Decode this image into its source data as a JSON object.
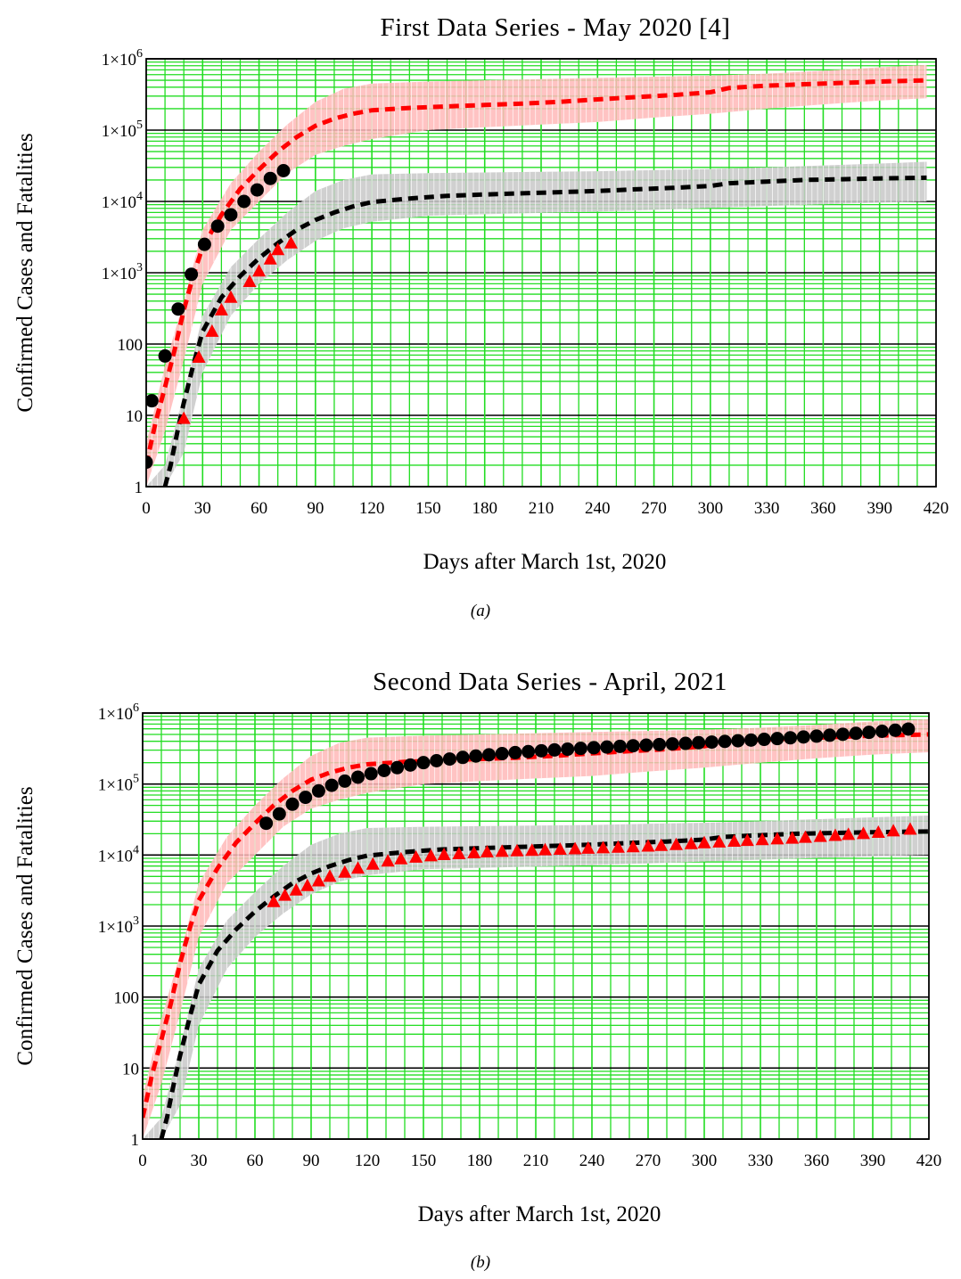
{
  "chart_data": [
    {
      "type": "scatter",
      "panel_label": "(a)",
      "title": "First Data Series - May 2020 [4]",
      "xlabel": "Days after March 1st, 2020",
      "ylabel": "Confirmed Cases and Fatalities",
      "xlim": [
        0,
        420
      ],
      "ylim": [
        1,
        1000000
      ],
      "yscale": "log",
      "grid": true,
      "x_ticks": [
        "0",
        "30",
        "60",
        "90",
        "120",
        "150",
        "180",
        "210",
        "240",
        "270",
        "300",
        "330",
        "360",
        "390",
        "420"
      ],
      "y_ticks": [
        "1",
        "10",
        "100",
        "1×10^3",
        "1×10^4",
        "1×10^5",
        "1×10^6"
      ],
      "series": [
        {
          "kind": "band",
          "color": "#ffb8b8",
          "x": [
            0,
            10,
            20,
            30,
            45,
            60,
            75,
            90,
            105,
            120,
            150,
            180,
            210,
            240,
            270,
            300,
            330,
            360,
            390,
            415
          ],
          "lower": [
            1,
            6,
            60,
            700,
            4000,
            10000,
            25000,
            45000,
            60000,
            75000,
            100000,
            110000,
            120000,
            130000,
            150000,
            170000,
            200000,
            230000,
            260000,
            280000
          ],
          "upper": [
            4,
            50,
            400,
            4000,
            18000,
            50000,
            120000,
            250000,
            380000,
            450000,
            480000,
            500000,
            520000,
            540000,
            560000,
            580000,
            620000,
            680000,
            760000,
            820000
          ]
        },
        {
          "kind": "band",
          "color": "#c8c8c8",
          "x": [
            0,
            10,
            20,
            30,
            45,
            60,
            75,
            90,
            105,
            120,
            150,
            180,
            210,
            240,
            270,
            300,
            330,
            360,
            390,
            415
          ],
          "lower": [
            1,
            1,
            3,
            40,
            250,
            700,
            1500,
            2800,
            4200,
            5200,
            6300,
            6600,
            6900,
            7200,
            7600,
            8100,
            8600,
            9100,
            9600,
            10000
          ],
          "upper": [
            1,
            2,
            20,
            250,
            1200,
            3000,
            7000,
            14000,
            20000,
            24000,
            25000,
            25500,
            26000,
            26500,
            27500,
            28500,
            30000,
            32000,
            34000,
            36000
          ]
        },
        {
          "kind": "line",
          "style": "dashed",
          "color": "#ff0000",
          "x": [
            0,
            5,
            10,
            15,
            20,
            25,
            30,
            40,
            50,
            60,
            70,
            80,
            90,
            100,
            110,
            120,
            140,
            160,
            180,
            200,
            220,
            240,
            260,
            280,
            300,
            310,
            330,
            350,
            370,
            390,
            415
          ],
          "y": [
            2,
            8,
            25,
            80,
            300,
            900,
            2300,
            6500,
            15000,
            28000,
            50000,
            80000,
            115000,
            145000,
            170000,
            190000,
            205000,
            215000,
            225000,
            235000,
            250000,
            270000,
            290000,
            310000,
            340000,
            390000,
            420000,
            440000,
            460000,
            480000,
            500000
          ]
        },
        {
          "kind": "line",
          "style": "dashed",
          "color": "#000000",
          "x": [
            10,
            13,
            16,
            20,
            25,
            30,
            40,
            50,
            60,
            70,
            80,
            90,
            100,
            110,
            120,
            140,
            160,
            180,
            200,
            220,
            240,
            260,
            280,
            300,
            310,
            330,
            350,
            370,
            390,
            415
          ],
          "y": [
            1,
            2,
            5,
            15,
            50,
            150,
            450,
            900,
            1600,
            2600,
            4000,
            5500,
            7000,
            8500,
            9800,
            11000,
            12000,
            12500,
            13000,
            13500,
            14000,
            14800,
            15500,
            16500,
            18000,
            19000,
            20000,
            20500,
            21000,
            21500
          ]
        },
        {
          "kind": "points",
          "marker": "circle",
          "color": "#000000",
          "x": [
            0,
            3,
            10,
            17,
            24,
            31,
            38,
            45,
            52,
            59,
            66,
            73
          ],
          "y": [
            2.2,
            16,
            68,
            310,
            950,
            2500,
            4500,
            6500,
            10000,
            14500,
            21000,
            27000
          ]
        },
        {
          "kind": "points",
          "marker": "triangle",
          "color": "#ff0000",
          "x": [
            20,
            28,
            35,
            40,
            45,
            55,
            60,
            66,
            70,
            77
          ],
          "y": [
            9,
            65,
            150,
            300,
            450,
            750,
            1050,
            1550,
            2100,
            2600
          ]
        }
      ]
    },
    {
      "type": "scatter",
      "panel_label": "(b)",
      "title": "Second Data Series - April, 2021",
      "xlabel": "Days after March 1st, 2020",
      "ylabel": "Confirmed Cases and Fatalities",
      "xlim": [
        0,
        420
      ],
      "ylim": [
        1,
        1000000
      ],
      "yscale": "log",
      "grid": true,
      "x_ticks": [
        "0",
        "30",
        "60",
        "90",
        "120",
        "150",
        "180",
        "210",
        "240",
        "270",
        "300",
        "330",
        "360",
        "390",
        "420"
      ],
      "y_ticks": [
        "1",
        "10",
        "100",
        "1×10^3",
        "1×10^4",
        "1×10^5",
        "1×10^6"
      ],
      "series": [
        {
          "kind": "band",
          "color": "#ffb8b8",
          "x": [
            0,
            10,
            20,
            30,
            45,
            60,
            75,
            90,
            105,
            120,
            150,
            180,
            210,
            240,
            270,
            300,
            330,
            360,
            390,
            420
          ],
          "lower": [
            1,
            6,
            60,
            700,
            4000,
            10000,
            25000,
            45000,
            60000,
            75000,
            100000,
            110000,
            120000,
            130000,
            150000,
            170000,
            200000,
            230000,
            260000,
            280000
          ],
          "upper": [
            4,
            50,
            400,
            4000,
            18000,
            50000,
            120000,
            250000,
            380000,
            450000,
            480000,
            500000,
            520000,
            540000,
            560000,
            580000,
            620000,
            680000,
            760000,
            820000
          ]
        },
        {
          "kind": "band",
          "color": "#c8c8c8",
          "x": [
            0,
            10,
            20,
            30,
            45,
            60,
            75,
            90,
            105,
            120,
            150,
            180,
            210,
            240,
            270,
            300,
            330,
            360,
            390,
            420
          ],
          "lower": [
            1,
            1,
            3,
            40,
            250,
            700,
            1500,
            2800,
            4200,
            5200,
            6300,
            6600,
            6900,
            7200,
            7600,
            8100,
            8600,
            9100,
            9600,
            10000
          ],
          "upper": [
            1,
            2,
            20,
            250,
            1200,
            3000,
            7000,
            14000,
            20000,
            24000,
            25000,
            25500,
            26000,
            26500,
            27500,
            28500,
            30000,
            32000,
            34000,
            36000
          ]
        },
        {
          "kind": "line",
          "style": "dashed",
          "color": "#ff0000",
          "x": [
            0,
            5,
            10,
            15,
            20,
            25,
            30,
            40,
            50,
            60,
            70,
            80,
            90,
            100,
            110,
            120,
            140,
            160,
            180,
            200,
            220,
            240,
            260,
            280,
            300,
            310,
            330,
            350,
            370,
            390,
            420
          ],
          "y": [
            2,
            8,
            25,
            80,
            300,
            900,
            2300,
            6500,
            15000,
            28000,
            50000,
            80000,
            115000,
            145000,
            170000,
            190000,
            205000,
            215000,
            225000,
            235000,
            250000,
            270000,
            290000,
            310000,
            340000,
            390000,
            420000,
            440000,
            460000,
            480000,
            500000
          ]
        },
        {
          "kind": "line",
          "style": "dashed",
          "color": "#000000",
          "x": [
            10,
            13,
            16,
            20,
            25,
            30,
            40,
            50,
            60,
            70,
            80,
            90,
            100,
            110,
            120,
            140,
            160,
            180,
            200,
            220,
            240,
            260,
            280,
            300,
            310,
            330,
            350,
            370,
            390,
            420
          ],
          "y": [
            1,
            2,
            5,
            15,
            50,
            150,
            450,
            900,
            1600,
            2600,
            4000,
            5500,
            7000,
            8500,
            9800,
            11000,
            12000,
            12500,
            13000,
            13500,
            14000,
            14800,
            15500,
            16500,
            18000,
            19000,
            20000,
            20500,
            21000,
            21500
          ]
        },
        {
          "kind": "points",
          "marker": "circle",
          "color": "#000000",
          "x": [
            66,
            73,
            80,
            87,
            94,
            101,
            108,
            115,
            122,
            129,
            136,
            143,
            150,
            157,
            164,
            171,
            178,
            185,
            192,
            199,
            206,
            213,
            220,
            227,
            234,
            241,
            248,
            255,
            262,
            269,
            276,
            283,
            290,
            297,
            304,
            311,
            318,
            325,
            332,
            339,
            346,
            353,
            360,
            367,
            374,
            381,
            388,
            395,
            402,
            409
          ],
          "y": [
            28000,
            38000,
            52000,
            65000,
            80000,
            96000,
            110000,
            125000,
            140000,
            155000,
            170000,
            185000,
            200000,
            213000,
            225000,
            237000,
            248000,
            258000,
            268000,
            277000,
            286000,
            294000,
            302000,
            310000,
            318000,
            325000,
            332000,
            339000,
            346000,
            353000,
            360000,
            367000,
            374000,
            382000,
            390000,
            398000,
            407000,
            416000,
            426000,
            437000,
            448000,
            460000,
            473000,
            487000,
            502000,
            518000,
            535000,
            553000,
            573000,
            595000
          ]
        },
        {
          "kind": "points",
          "marker": "triangle",
          "color": "#ff0000",
          "x": [
            70,
            76,
            82,
            88,
            94,
            100,
            108,
            115,
            123,
            131,
            138,
            146,
            154,
            161,
            169,
            177,
            184,
            192,
            200,
            208,
            215,
            223,
            231,
            238,
            246,
            254,
            262,
            270,
            277,
            285,
            293,
            300,
            308,
            316,
            323,
            331,
            339,
            347,
            354,
            362,
            370,
            377,
            385,
            393,
            401,
            410
          ],
          "y": [
            2200,
            2700,
            3200,
            3700,
            4300,
            5000,
            5700,
            6500,
            7400,
            8200,
            8800,
            9300,
            9700,
            10100,
            10400,
            10700,
            11000,
            11200,
            11400,
            11600,
            11800,
            12000,
            12200,
            12400,
            12600,
            12800,
            13000,
            13300,
            13600,
            14000,
            14400,
            14800,
            15200,
            15600,
            16000,
            16400,
            16800,
            17200,
            17700,
            18200,
            18800,
            19400,
            20000,
            20800,
            21800,
            23000
          ]
        }
      ]
    }
  ]
}
